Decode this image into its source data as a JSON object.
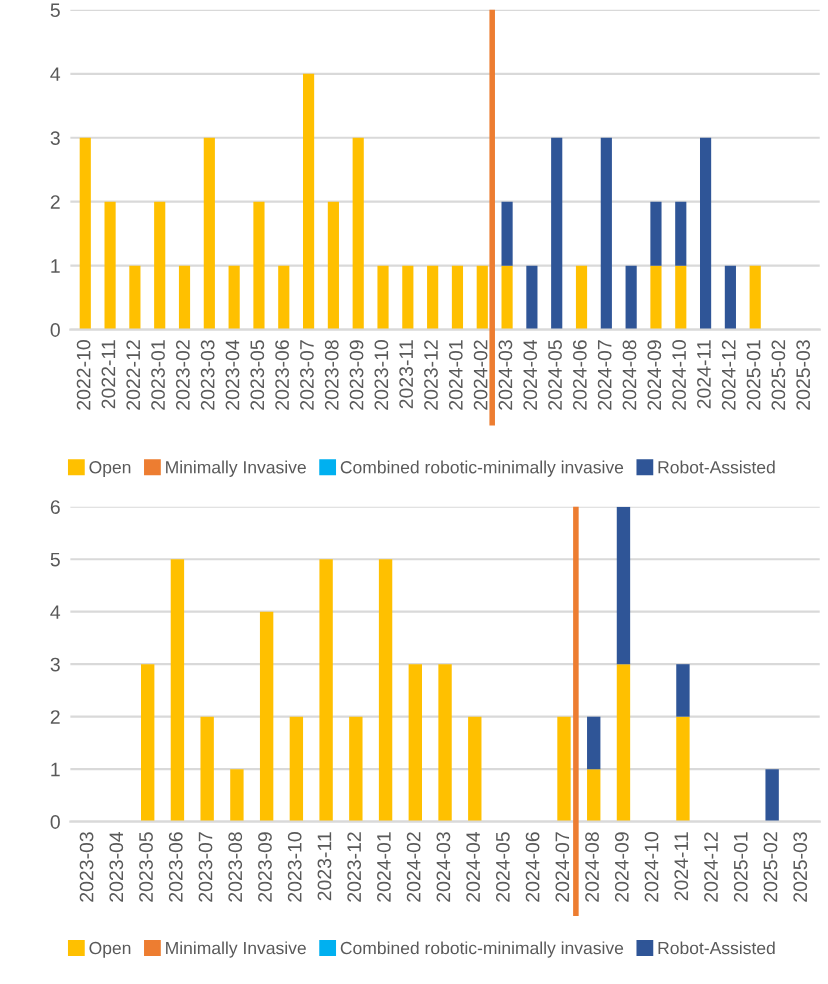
{
  "chart_data": [
    {
      "type": "bar",
      "stacked": true,
      "legend": "bottom",
      "grid": "y",
      "categories": [
        "2022-10",
        "2022-11",
        "2022-12",
        "2023-01",
        "2023-02",
        "2023-03",
        "2023-04",
        "2023-05",
        "2023-06",
        "2023-07",
        "2023-08",
        "2023-09",
        "2023-10",
        "2023-11",
        "2023-12",
        "2024-01",
        "2024-02",
        "2024-03",
        "2024-04",
        "2024-05",
        "2024-06",
        "2024-07",
        "2024-08",
        "2024-09",
        "2024-10",
        "2024-11",
        "2024-12",
        "2025-01",
        "2025-02",
        "2025-03"
      ],
      "ylim": [
        0,
        5
      ],
      "yticks": [
        0,
        1,
        2,
        3,
        4,
        5
      ],
      "series": [
        {
          "name": "Open",
          "color": "#ffc000",
          "values": [
            3,
            2,
            1,
            2,
            1,
            3,
            1,
            2,
            1,
            4,
            2,
            3,
            1,
            1,
            1,
            1,
            1,
            1,
            null,
            null,
            1,
            null,
            null,
            1,
            1,
            null,
            null,
            1,
            null,
            null
          ]
        },
        {
          "name": "Minimally Invasive",
          "color": "#ed7d31",
          "values": [
            null,
            null,
            null,
            null,
            null,
            null,
            null,
            null,
            null,
            null,
            null,
            null,
            null,
            null,
            null,
            null,
            null,
            null,
            null,
            null,
            null,
            null,
            null,
            null,
            null,
            null,
            null,
            null,
            null,
            null
          ]
        },
        {
          "name": "Combined robotic-minimally invasive",
          "color": "#00b0f0",
          "values": [
            null,
            null,
            null,
            null,
            null,
            null,
            null,
            null,
            null,
            null,
            null,
            null,
            null,
            null,
            null,
            null,
            null,
            null,
            null,
            null,
            null,
            null,
            null,
            null,
            null,
            null,
            null,
            null,
            null,
            null
          ]
        },
        {
          "name": "Robot-Assisted",
          "color": "#2f5597",
          "values": [
            null,
            null,
            null,
            null,
            null,
            null,
            null,
            null,
            null,
            null,
            null,
            null,
            null,
            null,
            null,
            null,
            null,
            1,
            1,
            3,
            null,
            3,
            1,
            1,
            1,
            3,
            1,
            null,
            null,
            null
          ]
        }
      ],
      "ref_lines": [
        {
          "axis": "x",
          "value": "2024-02",
          "color": "#ed7d31"
        }
      ]
    },
    {
      "type": "bar",
      "stacked": true,
      "legend": "bottom",
      "grid": "y",
      "categories": [
        "2023-03",
        "2023-04",
        "2023-05",
        "2023-06",
        "2023-07",
        "2023-08",
        "2023-09",
        "2023-10",
        "2023-11",
        "2023-12",
        "2024-01",
        "2024-02",
        "2024-03",
        "2024-04",
        "2024-05",
        "2024-06",
        "2024-07",
        "2024-08",
        "2024-09",
        "2024-10",
        "2024-11",
        "2024-12",
        "2025-01",
        "2025-02",
        "2025-03"
      ],
      "ylim": [
        0,
        6
      ],
      "yticks": [
        0,
        1,
        2,
        3,
        4,
        5,
        6
      ],
      "series": [
        {
          "name": "Open",
          "color": "#ffc000",
          "values": [
            null,
            null,
            3,
            5,
            2,
            1,
            4,
            2,
            5,
            2,
            5,
            3,
            3,
            2,
            null,
            null,
            2,
            1,
            3,
            null,
            2,
            null,
            null,
            null,
            null
          ]
        },
        {
          "name": "Minimally Invasive",
          "color": "#ed7d31",
          "values": [
            null,
            null,
            null,
            null,
            null,
            null,
            null,
            null,
            null,
            null,
            null,
            null,
            null,
            null,
            null,
            null,
            null,
            null,
            null,
            null,
            null,
            null,
            null,
            null,
            null
          ]
        },
        {
          "name": "Combined robotic-minimally invasive",
          "color": "#00b0f0",
          "values": [
            null,
            null,
            null,
            null,
            null,
            null,
            null,
            null,
            null,
            null,
            null,
            null,
            null,
            null,
            null,
            null,
            null,
            null,
            null,
            null,
            null,
            null,
            null,
            null,
            null
          ]
        },
        {
          "name": "Robot-Assisted",
          "color": "#2f5597",
          "values": [
            null,
            null,
            null,
            null,
            null,
            null,
            null,
            null,
            null,
            null,
            null,
            null,
            null,
            null,
            null,
            null,
            null,
            1,
            3,
            null,
            1,
            null,
            null,
            1,
            null
          ]
        }
      ],
      "ref_lines": [
        {
          "axis": "x",
          "value": "2024-07",
          "color": "#ed7d31"
        }
      ]
    }
  ]
}
